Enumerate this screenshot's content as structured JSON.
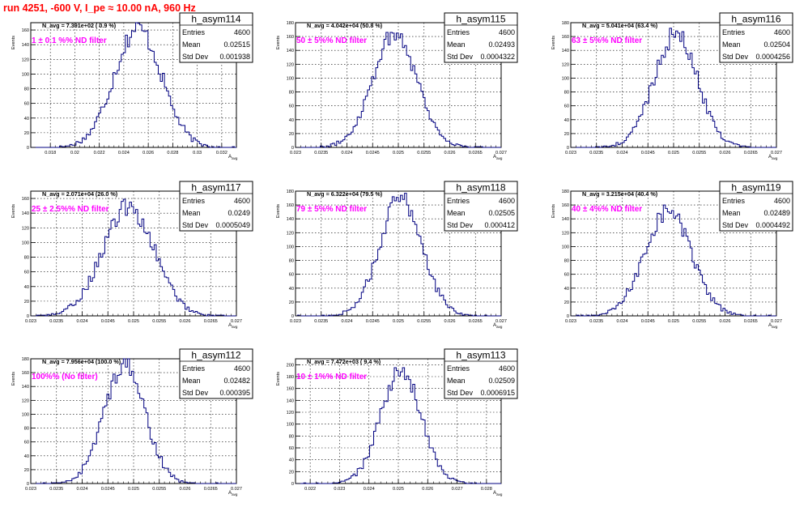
{
  "page_title": "run 4251,  -600 V, I_pe ≈ 10.00 nA, 960 Hz",
  "colors": {
    "histogram_line": "#000080",
    "filter_label": "#ff00ff",
    "title": "#ff0000"
  },
  "stats_labels": {
    "entries": "Entries",
    "mean": "Mean",
    "std_dev": "Std Dev"
  },
  "chart_data": [
    {
      "type": "histogram",
      "name": "h_asym114",
      "navg": "N_avg = 7.391e+02 ( 0.9 %)",
      "filter": "1 ± 0.1 %% ND filter",
      "entries": "4600",
      "mean": "0.02515",
      "std_dev": "0.001938",
      "xlabel": "A",
      "xlabel_sub": "avg",
      "ylabel": "Events",
      "xlim": [
        0.0164,
        0.0332
      ],
      "ylim": [
        0,
        170
      ],
      "xticks": [
        0.018,
        0.02,
        0.022,
        0.024,
        0.026,
        0.028,
        0.03,
        0.032
      ],
      "xtick_labels": [
        "0.018",
        "0.02",
        "0.022",
        "0.024",
        "0.026",
        "0.028",
        "0.03",
        "0.032"
      ],
      "yticks": [
        0,
        20,
        40,
        60,
        80,
        100,
        120,
        140,
        160
      ],
      "ytick_labels": [
        "0",
        "20",
        "40",
        "60",
        "80",
        "100",
        "120",
        "140",
        "160"
      ],
      "mu": 0.02515,
      "sigma": 0.001938,
      "peak": 162
    },
    {
      "type": "histogram",
      "name": "h_asym115",
      "navg": "N_avg = 4.042e+04 (50.8 %)",
      "filter": "50 ± 5%% ND filter",
      "entries": "4600",
      "mean": "0.02493",
      "std_dev": "0.0004322",
      "xlabel": "A",
      "xlabel_sub": "avg",
      "ylabel": "Events",
      "xlim": [
        0.023,
        0.027
      ],
      "ylim": [
        0,
        180
      ],
      "xticks": [
        0.023,
        0.0235,
        0.024,
        0.0245,
        0.025,
        0.0255,
        0.026,
        0.0265,
        0.027
      ],
      "xtick_labels": [
        "0.023",
        "0.0235",
        "0.024",
        "0.0245",
        "0.025",
        "0.0255",
        "0.026",
        "0.0265",
        "0.027"
      ],
      "yticks": [
        0,
        20,
        40,
        60,
        80,
        100,
        120,
        140,
        160,
        180
      ],
      "ytick_labels": [
        "0",
        "20",
        "40",
        "60",
        "80",
        "100",
        "120",
        "140",
        "160",
        "180"
      ],
      "mu": 0.02493,
      "sigma": 0.0004322,
      "peak": 165
    },
    {
      "type": "histogram",
      "name": "h_asym116",
      "navg": "N_avg = 5.041e+04 (63.4 %)",
      "filter": "63 ± 5%% ND filter",
      "entries": "4600",
      "mean": "0.02504",
      "std_dev": "0.0004256",
      "xlabel": "A",
      "xlabel_sub": "avg",
      "ylabel": "Events",
      "xlim": [
        0.023,
        0.027
      ],
      "ylim": [
        0,
        180
      ],
      "xticks": [
        0.023,
        0.0235,
        0.024,
        0.0245,
        0.025,
        0.0255,
        0.026,
        0.0265,
        0.027
      ],
      "xtick_labels": [
        "0.023",
        "0.0235",
        "0.024",
        "0.0245",
        "0.025",
        "0.0255",
        "0.026",
        "0.0265",
        "0.027"
      ],
      "yticks": [
        0,
        20,
        40,
        60,
        80,
        100,
        120,
        140,
        160,
        180
      ],
      "ytick_labels": [
        "0",
        "20",
        "40",
        "60",
        "80",
        "100",
        "120",
        "140",
        "160",
        "180"
      ],
      "mu": 0.02504,
      "sigma": 0.0004256,
      "peak": 163
    },
    {
      "type": "histogram",
      "name": "h_asym117",
      "navg": "N_avg = 2.071e+04 (26.0 %)",
      "filter": "25 ± 2.5%% ND filter",
      "entries": "4600",
      "mean": "0.0249",
      "std_dev": "0.0005049",
      "xlabel": "A",
      "xlabel_sub": "avg",
      "ylabel": "Events",
      "xlim": [
        0.023,
        0.027
      ],
      "ylim": [
        0,
        170
      ],
      "xticks": [
        0.023,
        0.0235,
        0.024,
        0.0245,
        0.025,
        0.0255,
        0.026,
        0.0265,
        0.027
      ],
      "xtick_labels": [
        "0.023",
        "0.0235",
        "0.024",
        "0.0245",
        "0.025",
        "0.0255",
        "0.026",
        "0.0265",
        "0.027"
      ],
      "yticks": [
        0,
        20,
        40,
        60,
        80,
        100,
        120,
        140,
        160
      ],
      "ytick_labels": [
        "0",
        "20",
        "40",
        "60",
        "80",
        "100",
        "120",
        "140",
        "160"
      ],
      "mu": 0.0249,
      "sigma": 0.0005049,
      "peak": 148
    },
    {
      "type": "histogram",
      "name": "h_asym118",
      "navg": "N_avg = 6.322e+04 (79.5 %)",
      "filter": "79 ± 5%% ND filter",
      "entries": "4600",
      "mean": "0.02505",
      "std_dev": "0.000412",
      "xlabel": "A",
      "xlabel_sub": "avg",
      "ylabel": "Events",
      "xlim": [
        0.023,
        0.027
      ],
      "ylim": [
        0,
        180
      ],
      "xticks": [
        0.023,
        0.0235,
        0.024,
        0.0245,
        0.025,
        0.0255,
        0.026,
        0.0265,
        0.027
      ],
      "xtick_labels": [
        "0.023",
        "0.0235",
        "0.024",
        "0.0245",
        "0.025",
        "0.0255",
        "0.026",
        "0.0265",
        "0.027"
      ],
      "yticks": [
        0,
        20,
        40,
        60,
        80,
        100,
        120,
        140,
        160,
        180
      ],
      "ytick_labels": [
        "0",
        "20",
        "40",
        "60",
        "80",
        "100",
        "120",
        "140",
        "160",
        "180"
      ],
      "mu": 0.02505,
      "sigma": 0.000412,
      "peak": 170
    },
    {
      "type": "histogram",
      "name": "h_asym119",
      "navg": "N_avg = 3.215e+04 (40.4 %)",
      "filter": "40 ± 4%% ND filter",
      "entries": "4600",
      "mean": "0.02489",
      "std_dev": "0.0004492",
      "xlabel": "A",
      "xlabel_sub": "avg",
      "ylabel": "Events",
      "xlim": [
        0.023,
        0.027
      ],
      "ylim": [
        0,
        180
      ],
      "xticks": [
        0.023,
        0.0235,
        0.024,
        0.0245,
        0.025,
        0.0255,
        0.026,
        0.0265,
        0.027
      ],
      "xtick_labels": [
        "0.023",
        "0.0235",
        "0.024",
        "0.0245",
        "0.025",
        "0.0255",
        "0.026",
        "0.0265",
        "0.027"
      ],
      "yticks": [
        0,
        20,
        40,
        60,
        80,
        100,
        120,
        140,
        160,
        180
      ],
      "ytick_labels": [
        "0",
        "20",
        "40",
        "60",
        "80",
        "100",
        "120",
        "140",
        "160",
        "180"
      ],
      "mu": 0.02489,
      "sigma": 0.0004492,
      "peak": 152
    },
    {
      "type": "histogram",
      "name": "h_asym112",
      "navg": "N_avg = 7.956e+04 (100.0 %)",
      "filter": "100%% (No filter)",
      "entries": "4600",
      "mean": "0.02482",
      "std_dev": "0.000395",
      "xlabel": "A",
      "xlabel_sub": "avg",
      "ylabel": "Events",
      "xlim": [
        0.023,
        0.027
      ],
      "ylim": [
        0,
        180
      ],
      "xticks": [
        0.023,
        0.0235,
        0.024,
        0.0245,
        0.025,
        0.0255,
        0.026,
        0.0265,
        0.027
      ],
      "xtick_labels": [
        "0.023",
        "0.0235",
        "0.024",
        "0.0245",
        "0.025",
        "0.0255",
        "0.026",
        "0.0265",
        "0.027"
      ],
      "yticks": [
        0,
        20,
        40,
        60,
        80,
        100,
        120,
        140,
        160,
        180
      ],
      "ytick_labels": [
        "0",
        "20",
        "40",
        "60",
        "80",
        "100",
        "120",
        "140",
        "160",
        "180"
      ],
      "mu": 0.02482,
      "sigma": 0.000395,
      "peak": 172
    },
    {
      "type": "histogram",
      "name": "h_asym113",
      "navg": "N_avg = 7.472e+03 ( 9.4 %)",
      "filter": "10 ± 1%% ND filter",
      "entries": "4600",
      "mean": "0.02509",
      "std_dev": "0.0006915",
      "xlabel": "A",
      "xlabel_sub": "avg",
      "ylabel": "Events",
      "xlim": [
        0.0215,
        0.0285
      ],
      "ylim": [
        0,
        210
      ],
      "xticks": [
        0.022,
        0.023,
        0.024,
        0.025,
        0.026,
        0.027,
        0.028
      ],
      "xtick_labels": [
        "0.022",
        "0.023",
        "0.024",
        "0.025",
        "0.026",
        "0.027",
        "0.028"
      ],
      "yticks": [
        0,
        20,
        40,
        60,
        80,
        100,
        120,
        140,
        160,
        180,
        200
      ],
      "ytick_labels": [
        "0",
        "20",
        "40",
        "60",
        "80",
        "100",
        "120",
        "140",
        "160",
        "180",
        "200"
      ],
      "mu": 0.02509,
      "sigma": 0.0006915,
      "peak": 188
    }
  ]
}
